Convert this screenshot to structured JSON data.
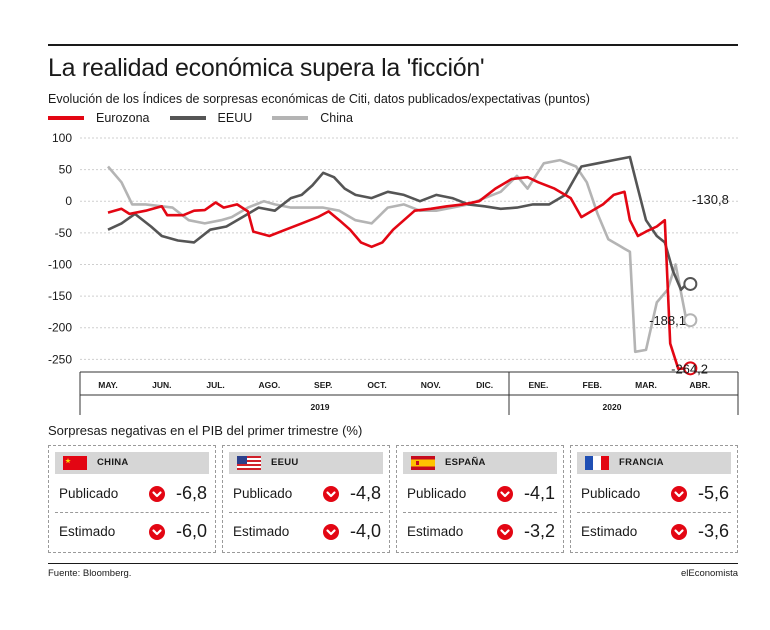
{
  "title": "La realidad económica supera la 'ficción'",
  "subtitle": "Evolución de los Índices de sorpresas económicas de Citi, datos publicados/expectativas (puntos)",
  "colors": {
    "eurozona": "#e30613",
    "eeuu": "#555555",
    "china": "#b4b4b4",
    "down": "#e30613"
  },
  "chart_data": {
    "type": "line",
    "x_months": [
      "MAY.",
      "JUN.",
      "JUL.",
      "AGO.",
      "SEP.",
      "OCT.",
      "NOV.",
      "DIC.",
      "ENE.",
      "FEB.",
      "MAR.",
      "ABR."
    ],
    "years": [
      "2019",
      "2020"
    ],
    "y_ticks": [
      "100",
      "50",
      "0",
      "-50",
      "-100",
      "-150",
      "-200",
      "-250"
    ],
    "ylim": [
      -270,
      100
    ],
    "grid": true,
    "legend_position": "top-left",
    "series": [
      {
        "name": "Eurozona",
        "end_label": "-264,2",
        "points": [
          [
            0,
            -18
          ],
          [
            0.25,
            -12
          ],
          [
            0.4,
            -20
          ],
          [
            0.7,
            -15
          ],
          [
            1.0,
            -8
          ],
          [
            1.1,
            -22
          ],
          [
            1.4,
            -22
          ],
          [
            1.6,
            -15
          ],
          [
            1.8,
            -14
          ],
          [
            2.0,
            -2
          ],
          [
            2.15,
            -10
          ],
          [
            2.4,
            -5
          ],
          [
            2.6,
            -16
          ],
          [
            2.7,
            -48
          ],
          [
            3.0,
            -55
          ],
          [
            3.3,
            -45
          ],
          [
            3.6,
            -35
          ],
          [
            3.9,
            -25
          ],
          [
            4.1,
            -16
          ],
          [
            4.3,
            -30
          ],
          [
            4.5,
            -45
          ],
          [
            4.7,
            -65
          ],
          [
            4.9,
            -72
          ],
          [
            5.1,
            -65
          ],
          [
            5.3,
            -45
          ],
          [
            5.5,
            -30
          ],
          [
            5.7,
            -15
          ],
          [
            6.0,
            -12
          ],
          [
            6.3,
            -8
          ],
          [
            6.6,
            -5
          ],
          [
            6.9,
            0
          ],
          [
            7.2,
            20
          ],
          [
            7.5,
            35
          ],
          [
            7.8,
            38
          ],
          [
            8.0,
            30
          ],
          [
            8.3,
            20
          ],
          [
            8.6,
            5
          ],
          [
            8.8,
            -25
          ],
          [
            9.0,
            -15
          ],
          [
            9.2,
            -5
          ],
          [
            9.4,
            10
          ],
          [
            9.6,
            15
          ],
          [
            9.7,
            -30
          ],
          [
            9.85,
            -55
          ],
          [
            10.0,
            -48
          ],
          [
            10.2,
            -40
          ],
          [
            10.35,
            -30
          ],
          [
            10.45,
            -225
          ],
          [
            10.6,
            -265
          ],
          [
            10.75,
            -264.2
          ]
        ]
      },
      {
        "name": "EEUU",
        "end_label": "-130,8",
        "points": [
          [
            0,
            -45
          ],
          [
            0.25,
            -35
          ],
          [
            0.5,
            -20
          ],
          [
            0.8,
            -40
          ],
          [
            1.0,
            -55
          ],
          [
            1.3,
            -62
          ],
          [
            1.6,
            -65
          ],
          [
            1.9,
            -45
          ],
          [
            2.2,
            -40
          ],
          [
            2.5,
            -25
          ],
          [
            2.8,
            -10
          ],
          [
            3.1,
            -15
          ],
          [
            3.4,
            5
          ],
          [
            3.6,
            10
          ],
          [
            3.8,
            25
          ],
          [
            4.0,
            45
          ],
          [
            4.2,
            38
          ],
          [
            4.4,
            20
          ],
          [
            4.6,
            10
          ],
          [
            4.9,
            5
          ],
          [
            5.2,
            15
          ],
          [
            5.5,
            10
          ],
          [
            5.8,
            0
          ],
          [
            6.1,
            10
          ],
          [
            6.4,
            5
          ],
          [
            6.7,
            -5
          ],
          [
            7.0,
            -8
          ],
          [
            7.3,
            -12
          ],
          [
            7.6,
            -10
          ],
          [
            7.9,
            -5
          ],
          [
            8.2,
            -5
          ],
          [
            8.5,
            10
          ],
          [
            8.8,
            55
          ],
          [
            9.1,
            60
          ],
          [
            9.4,
            65
          ],
          [
            9.7,
            70
          ],
          [
            9.85,
            20
          ],
          [
            10.0,
            -30
          ],
          [
            10.2,
            -55
          ],
          [
            10.35,
            -65
          ],
          [
            10.5,
            -110
          ],
          [
            10.65,
            -140
          ],
          [
            10.75,
            -130.8
          ]
        ]
      },
      {
        "name": "China",
        "end_label": "-188,1",
        "points": [
          [
            0,
            55
          ],
          [
            0.25,
            30
          ],
          [
            0.45,
            -5
          ],
          [
            0.7,
            -5
          ],
          [
            1.0,
            -8
          ],
          [
            1.2,
            -10
          ],
          [
            1.5,
            -30
          ],
          [
            1.8,
            -35
          ],
          [
            2.1,
            -30
          ],
          [
            2.3,
            -25
          ],
          [
            2.6,
            -10
          ],
          [
            2.9,
            0
          ],
          [
            3.1,
            -5
          ],
          [
            3.4,
            -10
          ],
          [
            3.7,
            -10
          ],
          [
            4.0,
            -10
          ],
          [
            4.3,
            -15
          ],
          [
            4.6,
            -30
          ],
          [
            4.9,
            -35
          ],
          [
            5.2,
            -10
          ],
          [
            5.5,
            -5
          ],
          [
            5.8,
            -15
          ],
          [
            6.1,
            -15
          ],
          [
            6.4,
            -10
          ],
          [
            6.7,
            -5
          ],
          [
            7.0,
            5
          ],
          [
            7.3,
            15
          ],
          [
            7.6,
            40
          ],
          [
            7.8,
            20
          ],
          [
            8.1,
            60
          ],
          [
            8.4,
            65
          ],
          [
            8.7,
            55
          ],
          [
            8.9,
            30
          ],
          [
            9.1,
            -20
          ],
          [
            9.3,
            -60
          ],
          [
            9.5,
            -70
          ],
          [
            9.6,
            -75
          ],
          [
            9.7,
            -80
          ],
          [
            9.8,
            -238
          ],
          [
            10.0,
            -235
          ],
          [
            10.2,
            -160
          ],
          [
            10.4,
            -140
          ],
          [
            10.55,
            -100
          ],
          [
            10.75,
            -188.1
          ]
        ]
      }
    ]
  },
  "gdp": {
    "section_title": "Sorpresas negativas en el PIB del primer trimestre (%)",
    "published_label": "Publicado",
    "estimated_label": "Estimado",
    "countries": [
      {
        "name": "CHINA",
        "flag": "cn-flag-icon",
        "published": "-6,8",
        "estimated": "-6,0"
      },
      {
        "name": "EEUU",
        "flag": "us-flag-icon",
        "published": "-4,8",
        "estimated": "-4,0"
      },
      {
        "name": "ESPAÑA",
        "flag": "es-flag-icon",
        "published": "-4,1",
        "estimated": "-3,2"
      },
      {
        "name": "FRANCIA",
        "flag": "fr-flag-icon",
        "published": "-5,6",
        "estimated": "-3,6"
      }
    ]
  },
  "footer": {
    "source": "Fuente: Bloomberg.",
    "brand": "elEconomista"
  }
}
